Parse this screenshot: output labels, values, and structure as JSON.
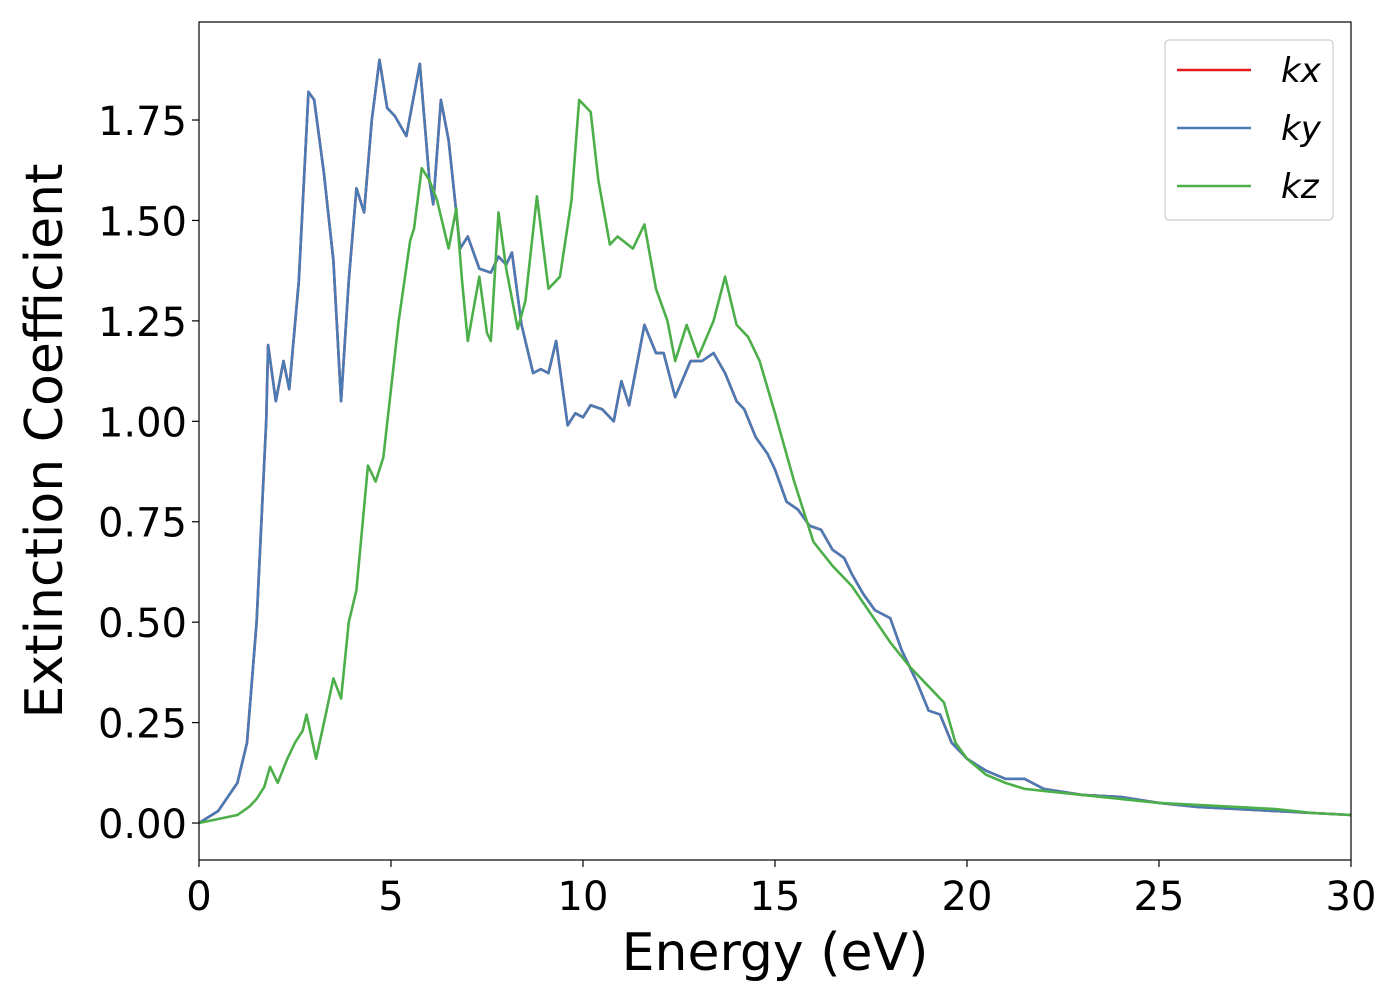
{
  "chart_data": {
    "type": "line",
    "xlabel": "Energy (eV)",
    "ylabel": "Extinction Coefficient",
    "xlim": [
      0,
      30
    ],
    "xticks": [
      0,
      5,
      10,
      15,
      20,
      25,
      30
    ],
    "ylim": [
      -0.092,
      1.994
    ],
    "yticks": [
      {
        "value": 0,
        "label": "0.00"
      },
      {
        "value": 0.25,
        "label": "0.25"
      },
      {
        "value": 0.5,
        "label": "0.50"
      },
      {
        "value": 0.75,
        "label": "0.75"
      },
      {
        "value": 1,
        "label": "1.00"
      },
      {
        "value": 1.25,
        "label": "1.25"
      },
      {
        "value": 1.5,
        "label": "1.50"
      },
      {
        "value": 1.75,
        "label": "1.75"
      }
    ],
    "grid": false,
    "legend": "upper right",
    "series": [
      {
        "name": "kx",
        "color": "#e41a1c",
        "x": [
          0,
          0.5,
          1,
          1.25,
          1.5,
          1.75,
          1.8,
          2.0,
          2.2,
          2.35,
          2.6,
          2.85,
          3.0,
          3.25,
          3.5,
          3.7,
          3.9,
          4.1,
          4.3,
          4.5,
          4.7,
          4.9,
          5.1,
          5.4,
          5.75,
          6.0,
          6.1,
          6.3,
          6.5,
          6.8,
          7.0,
          7.3,
          7.6,
          7.8,
          8.0,
          8.15,
          8.4,
          8.7,
          8.9,
          9.1,
          9.3,
          9.6,
          9.8,
          10.0,
          10.2,
          10.5,
          10.8,
          11.0,
          11.2,
          11.6,
          11.9,
          12.1,
          12.4,
          12.8,
          13.1,
          13.4,
          13.7,
          14.0,
          14.2,
          14.5,
          14.8,
          15.0,
          15.3,
          15.6,
          15.9,
          16.2,
          16.5,
          16.8,
          17.0,
          17.3,
          17.6,
          18.0,
          18.3,
          18.7,
          19.0,
          19.3,
          19.6,
          20.0,
          20.5,
          21.0,
          21.5,
          22.0,
          23,
          24,
          25,
          26,
          27,
          28,
          29,
          30
        ],
        "values": [
          0,
          0.03,
          0.1,
          0.2,
          0.5,
          1.0,
          1.19,
          1.05,
          1.15,
          1.08,
          1.35,
          1.82,
          1.8,
          1.62,
          1.4,
          1.05,
          1.35,
          1.58,
          1.52,
          1.75,
          1.9,
          1.78,
          1.76,
          1.71,
          1.89,
          1.6,
          1.54,
          1.8,
          1.7,
          1.43,
          1.46,
          1.38,
          1.37,
          1.41,
          1.39,
          1.42,
          1.24,
          1.12,
          1.13,
          1.12,
          1.2,
          0.99,
          1.02,
          1.01,
          1.04,
          1.03,
          1.0,
          1.1,
          1.04,
          1.24,
          1.17,
          1.17,
          1.06,
          1.15,
          1.15,
          1.17,
          1.12,
          1.05,
          1.03,
          0.96,
          0.92,
          0.88,
          0.8,
          0.78,
          0.74,
          0.73,
          0.68,
          0.66,
          0.62,
          0.57,
          0.53,
          0.51,
          0.43,
          0.35,
          0.28,
          0.27,
          0.2,
          0.16,
          0.13,
          0.11,
          0.11,
          0.085,
          0.07,
          0.065,
          0.05,
          0.04,
          0.035,
          0.03,
          0.025,
          0.02
        ]
      },
      {
        "name": "ky",
        "color": "#4a7bb5",
        "x": [
          0,
          0.5,
          1,
          1.25,
          1.5,
          1.75,
          1.8,
          2.0,
          2.2,
          2.35,
          2.6,
          2.85,
          3.0,
          3.25,
          3.5,
          3.7,
          3.9,
          4.1,
          4.3,
          4.5,
          4.7,
          4.9,
          5.1,
          5.4,
          5.75,
          6.0,
          6.1,
          6.3,
          6.5,
          6.8,
          7.0,
          7.3,
          7.6,
          7.8,
          8.0,
          8.15,
          8.4,
          8.7,
          8.9,
          9.1,
          9.3,
          9.6,
          9.8,
          10.0,
          10.2,
          10.5,
          10.8,
          11.0,
          11.2,
          11.6,
          11.9,
          12.1,
          12.4,
          12.8,
          13.1,
          13.4,
          13.7,
          14.0,
          14.2,
          14.5,
          14.8,
          15.0,
          15.3,
          15.6,
          15.9,
          16.2,
          16.5,
          16.8,
          17.0,
          17.3,
          17.6,
          18.0,
          18.3,
          18.7,
          19.0,
          19.3,
          19.6,
          20.0,
          20.5,
          21.0,
          21.5,
          22.0,
          23,
          24,
          25,
          26,
          27,
          28,
          29,
          30
        ],
        "values": [
          0,
          0.03,
          0.1,
          0.2,
          0.5,
          1.0,
          1.19,
          1.05,
          1.15,
          1.08,
          1.35,
          1.82,
          1.8,
          1.62,
          1.4,
          1.05,
          1.35,
          1.58,
          1.52,
          1.75,
          1.9,
          1.78,
          1.76,
          1.71,
          1.89,
          1.6,
          1.54,
          1.8,
          1.7,
          1.43,
          1.46,
          1.38,
          1.37,
          1.41,
          1.39,
          1.42,
          1.24,
          1.12,
          1.13,
          1.12,
          1.2,
          0.99,
          1.02,
          1.01,
          1.04,
          1.03,
          1.0,
          1.1,
          1.04,
          1.24,
          1.17,
          1.17,
          1.06,
          1.15,
          1.15,
          1.17,
          1.12,
          1.05,
          1.03,
          0.96,
          0.92,
          0.88,
          0.8,
          0.78,
          0.74,
          0.73,
          0.68,
          0.66,
          0.62,
          0.57,
          0.53,
          0.51,
          0.43,
          0.35,
          0.28,
          0.27,
          0.2,
          0.16,
          0.13,
          0.11,
          0.11,
          0.085,
          0.07,
          0.065,
          0.05,
          0.04,
          0.035,
          0.03,
          0.025,
          0.02
        ]
      },
      {
        "name": "kz",
        "color": "#4daf4a",
        "x": [
          0,
          1,
          1.3,
          1.5,
          1.7,
          1.85,
          2.05,
          2.3,
          2.5,
          2.7,
          2.8,
          3.05,
          3.3,
          3.5,
          3.7,
          3.9,
          4.1,
          4.4,
          4.6,
          4.8,
          5.2,
          5.5,
          5.6,
          5.8,
          6.0,
          6.2,
          6.5,
          6.7,
          6.85,
          7.0,
          7.3,
          7.5,
          7.6,
          7.8,
          8.0,
          8.3,
          8.5,
          8.8,
          9.1,
          9.4,
          9.7,
          9.9,
          10.2,
          10.4,
          10.7,
          10.9,
          11.3,
          11.6,
          11.9,
          12.2,
          12.4,
          12.7,
          13.0,
          13.4,
          13.7,
          14.0,
          14.3,
          14.6,
          15.0,
          15.5,
          16.0,
          16.5,
          17.0,
          17.5,
          18.0,
          18.5,
          19.0,
          19.4,
          19.7,
          20.0,
          20.5,
          21.0,
          21.5,
          22,
          23,
          24,
          25,
          26,
          27,
          28,
          29,
          30
        ],
        "values": [
          0,
          0.02,
          0.04,
          0.06,
          0.09,
          0.14,
          0.1,
          0.16,
          0.2,
          0.23,
          0.27,
          0.16,
          0.27,
          0.36,
          0.31,
          0.5,
          0.58,
          0.89,
          0.85,
          0.91,
          1.25,
          1.45,
          1.48,
          1.63,
          1.6,
          1.55,
          1.43,
          1.53,
          1.35,
          1.2,
          1.36,
          1.22,
          1.2,
          1.52,
          1.38,
          1.23,
          1.3,
          1.56,
          1.33,
          1.36,
          1.55,
          1.8,
          1.77,
          1.6,
          1.44,
          1.46,
          1.43,
          1.49,
          1.33,
          1.25,
          1.15,
          1.24,
          1.16,
          1.25,
          1.36,
          1.24,
          1.21,
          1.15,
          1.02,
          0.85,
          0.7,
          0.64,
          0.59,
          0.52,
          0.45,
          0.39,
          0.34,
          0.3,
          0.2,
          0.16,
          0.12,
          0.1,
          0.085,
          0.08,
          0.07,
          0.06,
          0.05,
          0.045,
          0.04,
          0.035,
          0.025,
          0.02
        ]
      }
    ]
  }
}
